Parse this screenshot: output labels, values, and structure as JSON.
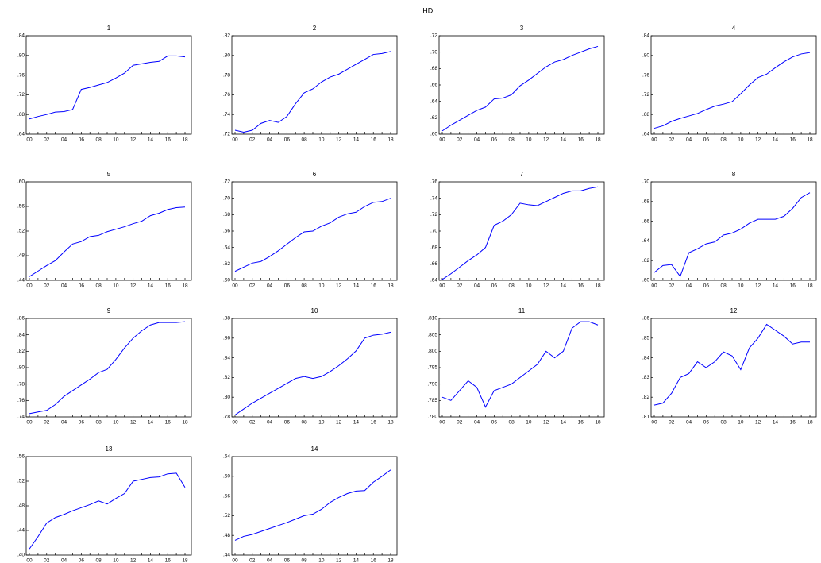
{
  "title": "HDI",
  "chart_data": [
    {
      "type": "line",
      "title": "1",
      "categories": [
        "00",
        null,
        "02",
        null,
        "04",
        null,
        "06",
        null,
        "08",
        null,
        "10",
        null,
        "12",
        null,
        "14",
        null,
        "16",
        null,
        "18"
      ],
      "series": [
        {
          "color": "#0000ff",
          "values": [
            0.671,
            0.676,
            0.68,
            0.685,
            0.686,
            0.69,
            0.731,
            0.735,
            0.74,
            0.745,
            0.754,
            0.764,
            0.78,
            0.783,
            0.786,
            0.788,
            0.799,
            0.799,
            0.797
          ]
        }
      ],
      "ylim": [
        0.64,
        0.84
      ],
      "yticks": [
        {
          "value": 0.64,
          "label": ".64"
        },
        {
          "value": 0.68,
          "label": ".68"
        },
        {
          "value": 0.72,
          "label": ".72"
        },
        {
          "value": 0.76,
          "label": ".76"
        },
        {
          "value": 0.8,
          "label": ".80"
        },
        {
          "value": 0.84,
          "label": ".84"
        }
      ]
    },
    {
      "type": "line",
      "title": "2",
      "categories": [
        "00",
        null,
        "02",
        null,
        "04",
        null,
        "06",
        null,
        "08",
        null,
        "10",
        null,
        "12",
        null,
        "14",
        null,
        "16",
        null,
        "18"
      ],
      "series": [
        {
          "color": "#0000ff",
          "values": [
            0.724,
            0.722,
            0.724,
            0.731,
            0.734,
            0.732,
            0.738,
            0.751,
            0.762,
            0.766,
            0.773,
            0.778,
            0.781,
            0.786,
            0.791,
            0.796,
            0.801,
            0.802,
            0.804
          ]
        }
      ],
      "ylim": [
        0.72,
        0.82
      ],
      "yticks": [
        {
          "value": 0.72,
          "label": ".72"
        },
        {
          "value": 0.74,
          "label": ".74"
        },
        {
          "value": 0.76,
          "label": ".76"
        },
        {
          "value": 0.78,
          "label": ".78"
        },
        {
          "value": 0.8,
          "label": ".80"
        },
        {
          "value": 0.82,
          "label": ".82"
        }
      ]
    },
    {
      "type": "line",
      "title": "3",
      "categories": [
        "00",
        null,
        "02",
        null,
        "04",
        null,
        "06",
        null,
        "08",
        null,
        "10",
        null,
        "12",
        null,
        "14",
        null,
        "16",
        null,
        "18"
      ],
      "series": [
        {
          "color": "#0000ff",
          "values": [
            0.604,
            0.611,
            0.617,
            0.623,
            0.629,
            0.633,
            0.643,
            0.644,
            0.648,
            0.659,
            0.666,
            0.674,
            0.682,
            0.688,
            0.691,
            0.696,
            0.7,
            0.704,
            0.707
          ]
        }
      ],
      "ylim": [
        0.6,
        0.72
      ],
      "yticks": [
        {
          "value": 0.6,
          "label": ".60"
        },
        {
          "value": 0.62,
          "label": ".62"
        },
        {
          "value": 0.64,
          "label": ".64"
        },
        {
          "value": 0.66,
          "label": ".66"
        },
        {
          "value": 0.68,
          "label": ".68"
        },
        {
          "value": 0.7,
          "label": ".70"
        },
        {
          "value": 0.72,
          "label": ".72"
        }
      ]
    },
    {
      "type": "line",
      "title": "4",
      "categories": [
        "00",
        null,
        "02",
        null,
        "04",
        null,
        "06",
        null,
        "08",
        null,
        "10",
        null,
        "12",
        null,
        "14",
        null,
        "16",
        null,
        "18"
      ],
      "series": [
        {
          "color": "#0000ff",
          "values": [
            0.652,
            0.657,
            0.666,
            0.672,
            0.677,
            0.682,
            0.69,
            0.697,
            0.701,
            0.706,
            0.722,
            0.74,
            0.755,
            0.762,
            0.775,
            0.787,
            0.797,
            0.803,
            0.806
          ]
        }
      ],
      "ylim": [
        0.64,
        0.84
      ],
      "yticks": [
        {
          "value": 0.64,
          "label": ".64"
        },
        {
          "value": 0.68,
          "label": ".68"
        },
        {
          "value": 0.72,
          "label": ".72"
        },
        {
          "value": 0.76,
          "label": ".76"
        },
        {
          "value": 0.8,
          "label": ".80"
        },
        {
          "value": 0.84,
          "label": ".84"
        }
      ]
    },
    {
      "type": "line",
      "title": "5",
      "categories": [
        "00",
        null,
        "02",
        null,
        "04",
        null,
        "06",
        null,
        "08",
        null,
        "10",
        null,
        "12",
        null,
        "14",
        null,
        "16",
        null,
        "18"
      ],
      "series": [
        {
          "color": "#0000ff",
          "values": [
            0.446,
            0.455,
            0.464,
            0.472,
            0.486,
            0.499,
            0.503,
            0.511,
            0.513,
            0.519,
            0.523,
            0.527,
            0.532,
            0.536,
            0.545,
            0.549,
            0.555,
            0.558,
            0.559
          ]
        }
      ],
      "ylim": [
        0.44,
        0.6
      ],
      "yticks": [
        {
          "value": 0.44,
          "label": ".44"
        },
        {
          "value": 0.48,
          "label": ".48"
        },
        {
          "value": 0.52,
          "label": ".52"
        },
        {
          "value": 0.56,
          "label": ".56"
        },
        {
          "value": 0.6,
          "label": ".60"
        }
      ]
    },
    {
      "type": "line",
      "title": "6",
      "categories": [
        "00",
        null,
        "02",
        null,
        "04",
        null,
        "06",
        null,
        "08",
        null,
        "10",
        null,
        "12",
        null,
        "14",
        null,
        "16",
        null,
        "18"
      ],
      "series": [
        {
          "color": "#0000ff",
          "values": [
            0.611,
            0.616,
            0.621,
            0.623,
            0.629,
            0.636,
            0.644,
            0.652,
            0.659,
            0.66,
            0.666,
            0.67,
            0.677,
            0.681,
            0.683,
            0.69,
            0.695,
            0.696,
            0.7
          ]
        }
      ],
      "ylim": [
        0.6,
        0.72
      ],
      "yticks": [
        {
          "value": 0.6,
          "label": ".60"
        },
        {
          "value": 0.62,
          "label": ".62"
        },
        {
          "value": 0.64,
          "label": ".64"
        },
        {
          "value": 0.66,
          "label": ".66"
        },
        {
          "value": 0.68,
          "label": ".68"
        },
        {
          "value": 0.7,
          "label": ".70"
        },
        {
          "value": 0.72,
          "label": ".72"
        }
      ]
    },
    {
      "type": "line",
      "title": "7",
      "categories": [
        "00",
        null,
        "02",
        null,
        "04",
        null,
        "06",
        null,
        "08",
        null,
        "10",
        null,
        "12",
        null,
        "14",
        null,
        "16",
        null,
        "18"
      ],
      "series": [
        {
          "color": "#0000ff",
          "values": [
            0.641,
            0.648,
            0.656,
            0.664,
            0.671,
            0.68,
            0.707,
            0.712,
            0.72,
            0.734,
            0.732,
            0.731,
            0.736,
            0.741,
            0.746,
            0.749,
            0.749,
            0.752,
            0.754
          ]
        }
      ],
      "ylim": [
        0.64,
        0.76
      ],
      "yticks": [
        {
          "value": 0.64,
          "label": ".64"
        },
        {
          "value": 0.66,
          "label": ".66"
        },
        {
          "value": 0.68,
          "label": ".68"
        },
        {
          "value": 0.7,
          "label": ".70"
        },
        {
          "value": 0.72,
          "label": ".72"
        },
        {
          "value": 0.74,
          "label": ".74"
        },
        {
          "value": 0.76,
          "label": ".76"
        }
      ]
    },
    {
      "type": "line",
      "title": "8",
      "categories": [
        "00",
        null,
        "02",
        null,
        "04",
        null,
        "06",
        null,
        "08",
        null,
        "10",
        null,
        "12",
        null,
        "14",
        null,
        "16",
        null,
        "18"
      ],
      "series": [
        {
          "color": "#0000ff",
          "values": [
            0.608,
            0.615,
            0.616,
            0.604,
            0.628,
            0.632,
            0.637,
            0.639,
            0.646,
            0.648,
            0.652,
            0.658,
            0.662,
            0.662,
            0.662,
            0.665,
            0.673,
            0.684,
            0.689
          ]
        }
      ],
      "ylim": [
        0.6,
        0.7
      ],
      "yticks": [
        {
          "value": 0.6,
          "label": ".60"
        },
        {
          "value": 0.62,
          "label": ".62"
        },
        {
          "value": 0.64,
          "label": ".64"
        },
        {
          "value": 0.66,
          "label": ".66"
        },
        {
          "value": 0.68,
          "label": ".68"
        },
        {
          "value": 0.7,
          "label": ".70"
        }
      ]
    },
    {
      "type": "line",
      "title": "9",
      "categories": [
        "00",
        null,
        "02",
        null,
        "04",
        null,
        "06",
        null,
        "08",
        null,
        "10",
        null,
        "12",
        null,
        "14",
        null,
        "16",
        null,
        "18"
      ],
      "series": [
        {
          "color": "#0000ff",
          "values": [
            0.744,
            0.746,
            0.748,
            0.755,
            0.765,
            0.772,
            0.779,
            0.786,
            0.794,
            0.798,
            0.81,
            0.824,
            0.836,
            0.845,
            0.852,
            0.855,
            0.855,
            0.855,
            0.856
          ]
        }
      ],
      "ylim": [
        0.74,
        0.86
      ],
      "yticks": [
        {
          "value": 0.74,
          "label": ".74"
        },
        {
          "value": 0.76,
          "label": ".76"
        },
        {
          "value": 0.78,
          "label": ".78"
        },
        {
          "value": 0.8,
          "label": ".80"
        },
        {
          "value": 0.82,
          "label": ".82"
        },
        {
          "value": 0.84,
          "label": ".84"
        },
        {
          "value": 0.86,
          "label": ".86"
        }
      ]
    },
    {
      "type": "line",
      "title": "10",
      "categories": [
        "00",
        null,
        "02",
        null,
        "04",
        null,
        "06",
        null,
        "08",
        null,
        "10",
        null,
        "12",
        null,
        "14",
        null,
        "16",
        null,
        "18"
      ],
      "series": [
        {
          "color": "#0000ff",
          "values": [
            0.782,
            0.788,
            0.794,
            0.799,
            0.804,
            0.809,
            0.814,
            0.819,
            0.821,
            0.819,
            0.821,
            0.826,
            0.832,
            0.839,
            0.847,
            0.86,
            0.863,
            0.864,
            0.866
          ]
        }
      ],
      "ylim": [
        0.78,
        0.88
      ],
      "yticks": [
        {
          "value": 0.78,
          "label": ".78"
        },
        {
          "value": 0.8,
          "label": ".80"
        },
        {
          "value": 0.82,
          "label": ".82"
        },
        {
          "value": 0.84,
          "label": ".84"
        },
        {
          "value": 0.86,
          "label": ".86"
        },
        {
          "value": 0.88,
          "label": ".88"
        }
      ]
    },
    {
      "type": "line",
      "title": "11",
      "categories": [
        "00",
        null,
        "02",
        null,
        "04",
        null,
        "06",
        null,
        "08",
        null,
        "10",
        null,
        "12",
        null,
        "14",
        null,
        "16",
        null,
        "18"
      ],
      "series": [
        {
          "color": "#0000ff",
          "values": [
            0.786,
            0.785,
            0.788,
            0.791,
            0.789,
            0.783,
            0.788,
            0.789,
            0.79,
            0.792,
            0.794,
            0.796,
            0.8,
            0.798,
            0.8,
            0.807,
            0.809,
            0.809,
            0.808
          ]
        }
      ],
      "ylim": [
        0.78,
        0.81
      ],
      "yticks": [
        {
          "value": 0.78,
          "label": ".780"
        },
        {
          "value": 0.785,
          "label": ".785"
        },
        {
          "value": 0.79,
          "label": ".790"
        },
        {
          "value": 0.795,
          "label": ".795"
        },
        {
          "value": 0.8,
          "label": ".800"
        },
        {
          "value": 0.805,
          "label": ".805"
        },
        {
          "value": 0.81,
          "label": ".810"
        }
      ]
    },
    {
      "type": "line",
      "title": "12",
      "categories": [
        "00",
        null,
        "02",
        null,
        "04",
        null,
        "06",
        null,
        "08",
        null,
        "10",
        null,
        "12",
        null,
        "14",
        null,
        "16",
        null,
        "18"
      ],
      "series": [
        {
          "color": "#0000ff",
          "values": [
            0.816,
            0.817,
            0.822,
            0.83,
            0.832,
            0.838,
            0.835,
            0.838,
            0.843,
            0.841,
            0.834,
            0.845,
            0.85,
            0.857,
            0.854,
            0.851,
            0.847,
            0.848,
            0.848
          ]
        }
      ],
      "ylim": [
        0.81,
        0.86
      ],
      "yticks": [
        {
          "value": 0.81,
          "label": ".81"
        },
        {
          "value": 0.82,
          "label": ".82"
        },
        {
          "value": 0.83,
          "label": ".83"
        },
        {
          "value": 0.84,
          "label": ".84"
        },
        {
          "value": 0.85,
          "label": ".85"
        },
        {
          "value": 0.86,
          "label": ".86"
        }
      ]
    },
    {
      "type": "line",
      "title": "13",
      "categories": [
        "00",
        null,
        "02",
        null,
        "04",
        null,
        "06",
        null,
        "08",
        null,
        "10",
        null,
        "12",
        null,
        "14",
        null,
        "16",
        null,
        "18"
      ],
      "series": [
        {
          "color": "#0000ff",
          "values": [
            0.41,
            0.43,
            0.452,
            0.461,
            0.466,
            0.472,
            0.477,
            0.482,
            0.488,
            0.483,
            0.492,
            0.5,
            0.52,
            0.523,
            0.526,
            0.527,
            0.532,
            0.533,
            0.51
          ]
        }
      ],
      "ylim": [
        0.4,
        0.56
      ],
      "yticks": [
        {
          "value": 0.4,
          "label": ".40"
        },
        {
          "value": 0.44,
          "label": ".44"
        },
        {
          "value": 0.48,
          "label": ".48"
        },
        {
          "value": 0.52,
          "label": ".52"
        },
        {
          "value": 0.56,
          "label": ".56"
        }
      ]
    },
    {
      "type": "line",
      "title": "14",
      "categories": [
        "00",
        null,
        "02",
        null,
        "04",
        null,
        "06",
        null,
        "08",
        null,
        "10",
        null,
        "12",
        null,
        "14",
        null,
        "16",
        null,
        "18"
      ],
      "series": [
        {
          "color": "#0000ff",
          "values": [
            0.47,
            0.478,
            0.482,
            0.488,
            0.494,
            0.5,
            0.506,
            0.513,
            0.52,
            0.523,
            0.533,
            0.547,
            0.557,
            0.565,
            0.57,
            0.571,
            0.588,
            0.6,
            0.613
          ]
        }
      ],
      "ylim": [
        0.44,
        0.64
      ],
      "yticks": [
        {
          "value": 0.44,
          "label": ".44"
        },
        {
          "value": 0.48,
          "label": ".48"
        },
        {
          "value": 0.52,
          "label": ".52"
        },
        {
          "value": 0.56,
          "label": ".56"
        },
        {
          "value": 0.6,
          "label": ".60"
        },
        {
          "value": 0.64,
          "label": ".64"
        }
      ]
    }
  ]
}
